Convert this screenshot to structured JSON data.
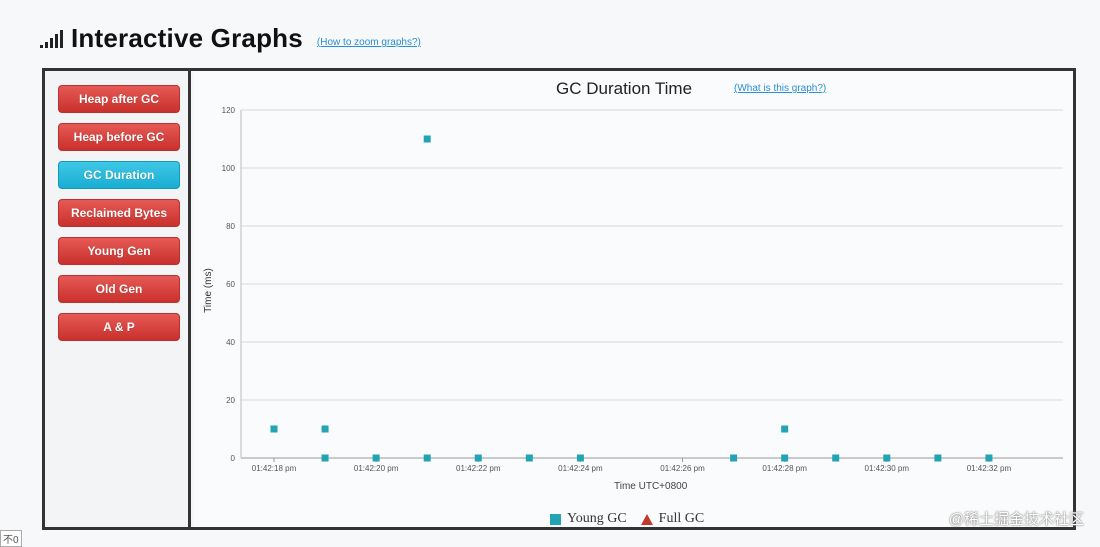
{
  "header": {
    "title": "Interactive Graphs",
    "link": "(How to zoom graphs?)",
    "icon": "signal-bars-icon"
  },
  "sidebar": {
    "buttons": [
      {
        "label": "Heap after GC",
        "active": false
      },
      {
        "label": "Heap before GC",
        "active": false
      },
      {
        "label": "GC Duration",
        "active": true
      },
      {
        "label": "Reclaimed Bytes",
        "active": false
      },
      {
        "label": "Young Gen",
        "active": false
      },
      {
        "label": "Old Gen",
        "active": false
      },
      {
        "label": "A & P",
        "active": false
      }
    ]
  },
  "graph": {
    "info_link": "(What is this graph?)"
  },
  "chart_data": {
    "type": "scatter",
    "title": "GC Duration Time",
    "xlabel": "Time UTC+0800",
    "ylabel": "Time (ms)",
    "ylim": [
      0,
      120
    ],
    "y_ticks": [
      "0",
      "20",
      "40",
      "60",
      "80",
      "100",
      "120"
    ],
    "x_ticks": [
      "01:42:18 pm",
      "01:42:20 pm",
      "01:42:22 pm",
      "01:42:24 pm",
      "01:42:26 pm",
      "01:42:28 pm",
      "01:42:30 pm",
      "01:42:32 pm"
    ],
    "x_range": [
      0,
      15
    ],
    "grid": true,
    "legend_position": "bottom",
    "series": [
      {
        "name": "Young GC",
        "color": "#24a3b4",
        "marker": "square",
        "points": [
          [
            0,
            10
          ],
          [
            1,
            10
          ],
          [
            1,
            0
          ],
          [
            2,
            0
          ],
          [
            3,
            110
          ],
          [
            3,
            0
          ],
          [
            4,
            0
          ],
          [
            5,
            0
          ],
          [
            6,
            0
          ],
          [
            9,
            0
          ],
          [
            10,
            10
          ],
          [
            10,
            0
          ],
          [
            11,
            0
          ],
          [
            12,
            0
          ],
          [
            13,
            0
          ],
          [
            14,
            0
          ]
        ]
      },
      {
        "name": "Full GC",
        "color": "#c0392b",
        "marker": "triangle",
        "points": []
      }
    ]
  },
  "footer": {
    "corner_text": "不0",
    "watermark": "@稀土掘金技术社区"
  }
}
